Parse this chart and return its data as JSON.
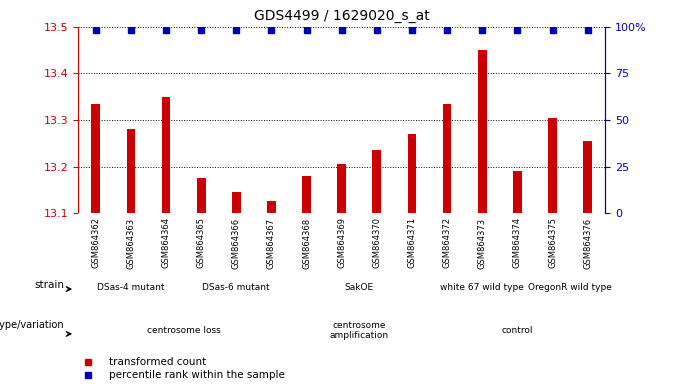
{
  "title": "GDS4499 / 1629020_s_at",
  "samples": [
    "GSM864362",
    "GSM864363",
    "GSM864364",
    "GSM864365",
    "GSM864366",
    "GSM864367",
    "GSM864368",
    "GSM864369",
    "GSM864370",
    "GSM864371",
    "GSM864372",
    "GSM864373",
    "GSM864374",
    "GSM864375",
    "GSM864376"
  ],
  "bar_values": [
    13.335,
    13.28,
    13.35,
    13.175,
    13.145,
    13.125,
    13.18,
    13.205,
    13.235,
    13.27,
    13.335,
    13.45,
    13.19,
    13.305,
    13.255
  ],
  "bar_color": "#CC0000",
  "percentile_color": "#0000BB",
  "ylim_left": [
    13.1,
    13.5
  ],
  "ylim_right": [
    0,
    100
  ],
  "yticks_left": [
    13.1,
    13.2,
    13.3,
    13.4,
    13.5
  ],
  "yticks_right": [
    0,
    25,
    50,
    75,
    100
  ],
  "strain_groups": [
    {
      "label": "DSas-4 mutant",
      "start": 0,
      "end": 2
    },
    {
      "label": "DSas-6 mutant",
      "start": 3,
      "end": 5
    },
    {
      "label": "SakOE",
      "start": 6,
      "end": 9
    },
    {
      "label": "white 67 wild type",
      "start": 10,
      "end": 12
    },
    {
      "label": "OregonR wild type",
      "start": 13,
      "end": 14
    }
  ],
  "genotype_groups": [
    {
      "label": "centrosome loss",
      "start": 0,
      "end": 5
    },
    {
      "label": "centrosome\namplification",
      "start": 6,
      "end": 9
    },
    {
      "label": "control",
      "start": 10,
      "end": 14
    }
  ],
  "legend_items": [
    {
      "label": "transformed count",
      "color": "#CC0000"
    },
    {
      "label": "percentile rank within the sample",
      "color": "#0000BB"
    }
  ],
  "strain_color": "#90EE90",
  "geno_color": "#EE82EE",
  "sample_bg_color": "#D3D3D3",
  "bg_color": "#FFFFFF"
}
